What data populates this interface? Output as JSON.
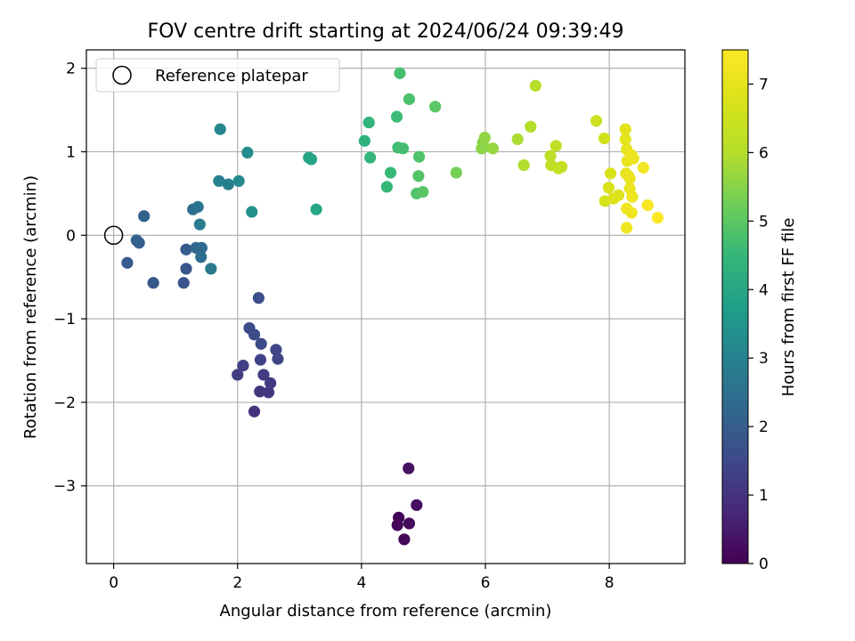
{
  "chart_data": {
    "type": "scatter",
    "title": "FOV centre drift starting at 2024/06/24 09:39:49",
    "xlabel": "Angular distance from reference (arcmin)",
    "ylabel": "Rotation from reference (arcmin)",
    "xlim": [
      -0.44,
      9.22
    ],
    "ylim": [
      -3.93,
      2.22
    ],
    "x_ticks": [
      0,
      2,
      4,
      6,
      8
    ],
    "y_ticks": [
      -3,
      -2,
      -1,
      0,
      1,
      2
    ],
    "grid": true,
    "legend": {
      "position": "top-left",
      "entries": [
        "Reference platepar"
      ]
    },
    "reference_point": {
      "x": 0,
      "y": 0
    },
    "colorbar": {
      "label": "Hours from first FF file",
      "range": [
        0,
        7.5
      ],
      "ticks": [
        0,
        1,
        2,
        3,
        4,
        5,
        6,
        7
      ],
      "colormap": "viridis"
    },
    "points": [
      {
        "x": 4.6,
        "y": -3.38,
        "t": 0.05
      },
      {
        "x": 4.58,
        "y": -3.47,
        "t": 0.1
      },
      {
        "x": 4.69,
        "y": -3.64,
        "t": 0.15
      },
      {
        "x": 4.77,
        "y": -3.45,
        "t": 0.2
      },
      {
        "x": 4.89,
        "y": -3.23,
        "t": 0.25
      },
      {
        "x": 4.76,
        "y": -2.79,
        "t": 0.3
      },
      {
        "x": 2.27,
        "y": -2.11,
        "t": 1.0
      },
      {
        "x": 2.36,
        "y": -1.87,
        "t": 1.05
      },
      {
        "x": 2.5,
        "y": -1.88,
        "t": 1.1
      },
      {
        "x": 2.53,
        "y": -1.77,
        "t": 1.15
      },
      {
        "x": 2.42,
        "y": -1.67,
        "t": 1.2
      },
      {
        "x": 2.0,
        "y": -1.67,
        "t": 1.25
      },
      {
        "x": 2.09,
        "y": -1.56,
        "t": 1.3
      },
      {
        "x": 2.37,
        "y": -1.49,
        "t": 1.35
      },
      {
        "x": 2.65,
        "y": -1.48,
        "t": 1.4
      },
      {
        "x": 2.62,
        "y": -1.37,
        "t": 1.45
      },
      {
        "x": 2.38,
        "y": -1.3,
        "t": 1.5
      },
      {
        "x": 2.27,
        "y": -1.19,
        "t": 1.55
      },
      {
        "x": 2.19,
        "y": -1.11,
        "t": 1.6
      },
      {
        "x": 2.34,
        "y": -0.75,
        "t": 1.65
      },
      {
        "x": 1.13,
        "y": -0.57,
        "t": 1.75
      },
      {
        "x": 1.17,
        "y": -0.4,
        "t": 1.8
      },
      {
        "x": 0.64,
        "y": -0.57,
        "t": 1.85
      },
      {
        "x": 0.22,
        "y": -0.33,
        "t": 1.9
      },
      {
        "x": 1.17,
        "y": -0.17,
        "t": 1.95
      },
      {
        "x": 0.41,
        "y": -0.09,
        "t": 2.0
      },
      {
        "x": 0.37,
        "y": -0.06,
        "t": 2.05
      },
      {
        "x": 0.49,
        "y": 0.23,
        "t": 2.1
      },
      {
        "x": 1.33,
        "y": -0.15,
        "t": 2.2
      },
      {
        "x": 1.42,
        "y": -0.15,
        "t": 2.3
      },
      {
        "x": 1.41,
        "y": -0.26,
        "t": 2.4
      },
      {
        "x": 1.28,
        "y": 0.31,
        "t": 2.5
      },
      {
        "x": 1.36,
        "y": 0.34,
        "t": 2.6
      },
      {
        "x": 1.57,
        "y": -0.4,
        "t": 2.7
      },
      {
        "x": 1.39,
        "y": 0.13,
        "t": 2.8
      },
      {
        "x": 1.85,
        "y": 0.61,
        "t": 2.9
      },
      {
        "x": 1.7,
        "y": 0.65,
        "t": 3.0
      },
      {
        "x": 1.72,
        "y": 1.27,
        "t": 3.1
      },
      {
        "x": 2.02,
        "y": 0.65,
        "t": 3.2
      },
      {
        "x": 2.16,
        "y": 0.99,
        "t": 3.3
      },
      {
        "x": 2.23,
        "y": 0.28,
        "t": 3.4
      },
      {
        "x": 3.15,
        "y": 0.93,
        "t": 3.9
      },
      {
        "x": 3.19,
        "y": 0.91,
        "t": 3.95
      },
      {
        "x": 3.27,
        "y": 0.31,
        "t": 4.0
      },
      {
        "x": 4.05,
        "y": 1.13,
        "t": 4.3
      },
      {
        "x": 4.12,
        "y": 1.35,
        "t": 4.4
      },
      {
        "x": 4.14,
        "y": 0.93,
        "t": 4.45
      },
      {
        "x": 4.41,
        "y": 0.58,
        "t": 4.5
      },
      {
        "x": 4.47,
        "y": 0.75,
        "t": 4.55
      },
      {
        "x": 4.57,
        "y": 1.42,
        "t": 4.6
      },
      {
        "x": 4.59,
        "y": 1.05,
        "t": 4.65
      },
      {
        "x": 4.67,
        "y": 1.04,
        "t": 4.7
      },
      {
        "x": 4.62,
        "y": 1.94,
        "t": 4.75
      },
      {
        "x": 4.77,
        "y": 1.63,
        "t": 4.8
      },
      {
        "x": 4.89,
        "y": 0.5,
        "t": 4.85
      },
      {
        "x": 4.93,
        "y": 0.94,
        "t": 4.85
      },
      {
        "x": 4.92,
        "y": 0.71,
        "t": 4.9
      },
      {
        "x": 4.99,
        "y": 0.52,
        "t": 4.95
      },
      {
        "x": 5.19,
        "y": 1.54,
        "t": 5.0
      },
      {
        "x": 5.53,
        "y": 0.75,
        "t": 5.3
      },
      {
        "x": 5.96,
        "y": 1.11,
        "t": 5.5
      },
      {
        "x": 5.94,
        "y": 1.04,
        "t": 5.55
      },
      {
        "x": 5.99,
        "y": 1.17,
        "t": 5.6
      },
      {
        "x": 6.12,
        "y": 1.04,
        "t": 5.65
      },
      {
        "x": 6.52,
        "y": 1.15,
        "t": 5.9
      },
      {
        "x": 6.62,
        "y": 0.84,
        "t": 5.95
      },
      {
        "x": 6.73,
        "y": 1.3,
        "t": 6.0
      },
      {
        "x": 6.81,
        "y": 1.79,
        "t": 6.05
      },
      {
        "x": 7.05,
        "y": 0.95,
        "t": 6.15
      },
      {
        "x": 7.06,
        "y": 0.84,
        "t": 6.2
      },
      {
        "x": 7.14,
        "y": 1.07,
        "t": 6.25
      },
      {
        "x": 7.18,
        "y": 0.8,
        "t": 6.3
      },
      {
        "x": 7.23,
        "y": 0.82,
        "t": 6.35
      },
      {
        "x": 7.79,
        "y": 1.37,
        "t": 6.5
      },
      {
        "x": 7.92,
        "y": 1.16,
        "t": 6.6
      },
      {
        "x": 7.93,
        "y": 0.41,
        "t": 6.7
      },
      {
        "x": 7.99,
        "y": 0.57,
        "t": 6.75
      },
      {
        "x": 8.02,
        "y": 0.74,
        "t": 6.8
      },
      {
        "x": 8.07,
        "y": 0.44,
        "t": 6.85
      },
      {
        "x": 8.15,
        "y": 0.48,
        "t": 6.9
      },
      {
        "x": 8.26,
        "y": 1.27,
        "t": 6.95
      },
      {
        "x": 8.26,
        "y": 1.15,
        "t": 7.0
      },
      {
        "x": 8.27,
        "y": 0.74,
        "t": 7.0
      },
      {
        "x": 8.28,
        "y": 1.03,
        "t": 7.05
      },
      {
        "x": 8.29,
        "y": 0.89,
        "t": 7.05
      },
      {
        "x": 8.31,
        "y": 0.71,
        "t": 7.1
      },
      {
        "x": 8.33,
        "y": 0.68,
        "t": 7.1
      },
      {
        "x": 8.33,
        "y": 0.56,
        "t": 7.1
      },
      {
        "x": 8.36,
        "y": 0.96,
        "t": 7.15
      },
      {
        "x": 8.37,
        "y": 0.46,
        "t": 7.15
      },
      {
        "x": 8.39,
        "y": 0.92,
        "t": 7.15
      },
      {
        "x": 8.36,
        "y": 0.27,
        "t": 7.2
      },
      {
        "x": 8.28,
        "y": 0.32,
        "t": 7.2
      },
      {
        "x": 8.28,
        "y": 0.09,
        "t": 7.2
      },
      {
        "x": 8.55,
        "y": 0.81,
        "t": 7.3
      },
      {
        "x": 8.62,
        "y": 0.36,
        "t": 7.35
      },
      {
        "x": 8.78,
        "y": 0.21,
        "t": 7.45
      }
    ]
  }
}
